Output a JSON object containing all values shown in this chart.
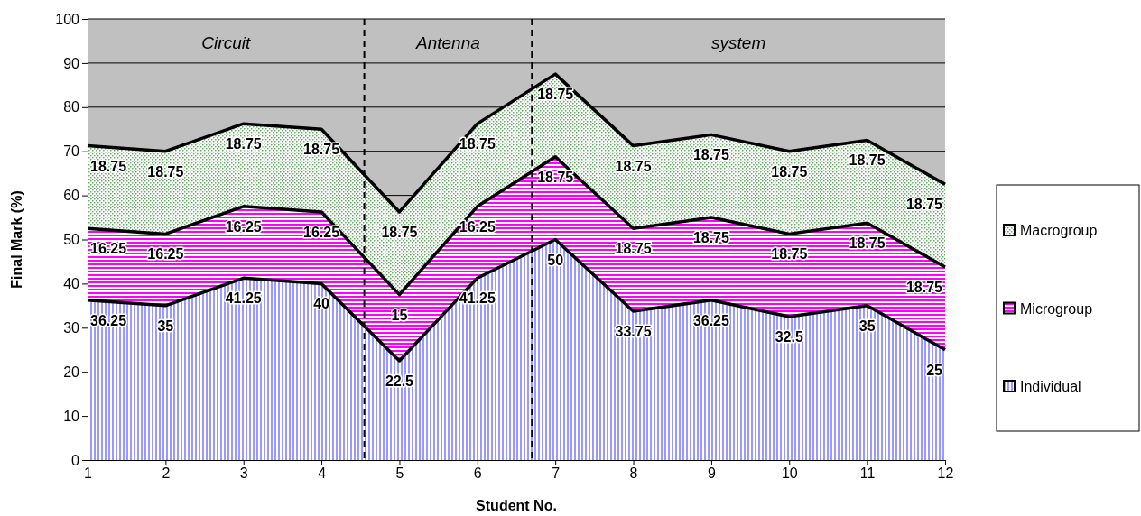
{
  "chart_data": {
    "type": "area",
    "stacked": true,
    "xlabel": "Student No.",
    "ylabel": "Final Mark (%)",
    "x": [
      1,
      2,
      3,
      4,
      5,
      6,
      7,
      8,
      9,
      10,
      11,
      12
    ],
    "xlim": [
      1,
      12
    ],
    "xticks": [
      1,
      2,
      3,
      4,
      5,
      6,
      7,
      8,
      9,
      10,
      11,
      12
    ],
    "ylim": [
      0,
      100
    ],
    "yticks": [
      0,
      10,
      20,
      30,
      40,
      50,
      60,
      70,
      80,
      90,
      100
    ],
    "grid": "y",
    "legend": "right",
    "data_labels": true,
    "series": [
      {
        "name": "Individual",
        "color": "#9999ff",
        "values": [
          36.25,
          35,
          41.25,
          40,
          22.5,
          41.25,
          50,
          33.75,
          36.25,
          32.5,
          35,
          25
        ]
      },
      {
        "name": "Microgroup",
        "color": "#ff00ff",
        "values": [
          16.25,
          16.25,
          16.25,
          16.25,
          15,
          16.25,
          18.75,
          18.75,
          18.75,
          18.75,
          18.75,
          18.75
        ]
      },
      {
        "name": "Macrogroup",
        "color": "#66aa66",
        "values": [
          18.75,
          18.75,
          18.75,
          18.75,
          18.75,
          18.75,
          18.75,
          18.75,
          18.75,
          18.75,
          18.75,
          18.75
        ]
      }
    ],
    "ref_lines": [
      {
        "axis": "x",
        "value": 4.55,
        "line_style": "dashed"
      },
      {
        "axis": "x",
        "value": 6.7,
        "line_style": "dashed"
      }
    ],
    "annotations": [
      "Circuit",
      "Antenna",
      "system"
    ]
  }
}
